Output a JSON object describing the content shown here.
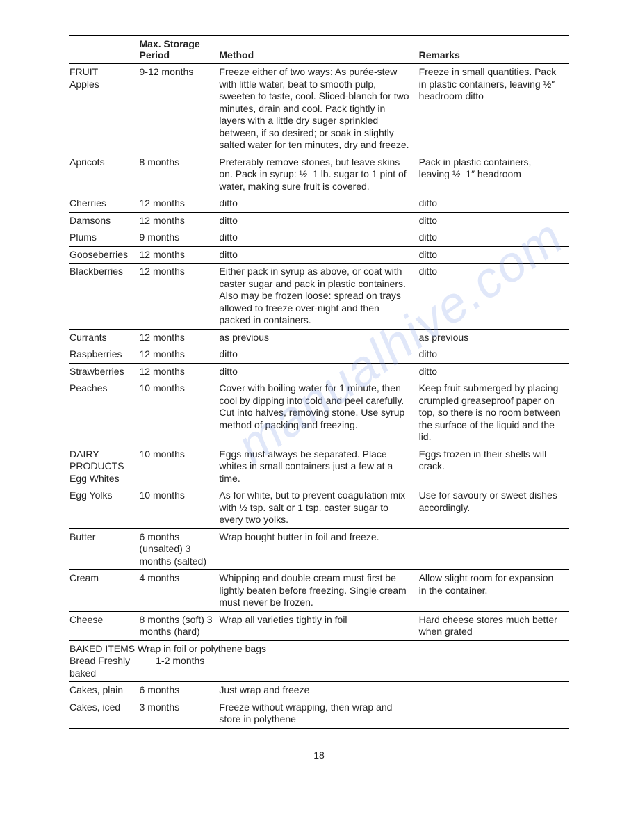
{
  "headers": {
    "item": "",
    "period_top": "Max. Storage",
    "period": "Period",
    "method": "Method",
    "remarks": "Remarks"
  },
  "rows": [
    {
      "cat": "FRUIT",
      "item": "Apples",
      "period": "9-12 months",
      "method": "Freeze either of two ways:\nAs purée-stew with little water, beat to smooth pulp, sweeten to taste, cool. Sliced-blanch for two minutes, drain and cool. Pack tightly in layers with a little dry suger sprinkled between, if so desired; or soak in slightly salted water for ten minutes, dry and freeze.",
      "remarks": "Freeze in small quantities. Pack in plastic containers, leaving ½″ headroom ditto"
    },
    {
      "item": "Apricots",
      "period": "8 months",
      "method": "Preferably remove stones, but leave skins on. Pack in syrup: ½–1 lb. sugar to 1 pint of water, making sure fruit is covered.",
      "remarks": "Pack in plastic containers, leaving ½–1″ headroom"
    },
    {
      "item": "Cherries",
      "period": "12 months",
      "method": "ditto",
      "remarks": "ditto"
    },
    {
      "item": "Damsons",
      "period": "12 months",
      "method": "ditto",
      "remarks": "ditto"
    },
    {
      "item": "Plums",
      "period": "9 months",
      "method": "ditto",
      "remarks": "ditto"
    },
    {
      "item": "Gooseberries",
      "period": "12 months",
      "method": "ditto",
      "remarks": "ditto"
    },
    {
      "item": "Blackberries",
      "period": "12 months",
      "method": "Either pack in syrup as above, or coat with caster sugar and pack in plastic containers. Also may be frozen loose: spread on trays allowed to freeze over-night and then packed in containers.",
      "remarks": "ditto"
    },
    {
      "item": "Currants",
      "period": "12 months",
      "method": "as previous",
      "remarks": "as previous"
    },
    {
      "item": "Raspberries",
      "period": "12 months",
      "method": "ditto",
      "remarks": "ditto"
    },
    {
      "item": "Strawberries",
      "period": "12 months",
      "method": "ditto",
      "remarks": "ditto"
    },
    {
      "item": "Peaches",
      "period": "10 months",
      "method": "Cover with boiling water for 1 minute, then cool by dipping into cold and peel carefully. Cut into halves, removing stone. Use syrup method of packing and freezing.",
      "remarks": "Keep fruit submerged by placing crumpled greaseproof paper on top, so there is no room between the surface of the liquid and the lid."
    },
    {
      "cat": "DAIRY PRODUCTS",
      "item": "Egg Whites",
      "period": "10 months",
      "method": "Eggs must always be separated. Place whites in small containers just a few at a time.",
      "remarks": "Eggs frozen in their shells will crack."
    },
    {
      "item": "Egg Yolks",
      "period": "10 months",
      "method": "As for white, but to prevent coagulation mix with ½ tsp. salt or 1 tsp. caster sugar to every two yolks.",
      "remarks": "Use for savoury or sweet dishes accordingly."
    },
    {
      "item": "Butter",
      "period": "6 months (unsalted) 3 months (salted)",
      "method": "Wrap bought butter in foil and freeze.",
      "remarks": ""
    },
    {
      "item": "Cream",
      "period": "4 months",
      "method": "Whipping and double cream must first be lightly beaten before freezing. Single cream must never be frozen.",
      "remarks": "Allow slight room for expansion in the container."
    },
    {
      "item": "Cheese",
      "period": "8 months (soft) 3 months (hard)",
      "method": "Wrap all varieties tightly in foil",
      "remarks": "Hard cheese stores much better when grated"
    },
    {
      "cat": "BAKED ITEMS",
      "cat_note": "Wrap in foil or polythene bags",
      "item": "Bread Freshly baked",
      "period": "1-2 months",
      "method": "",
      "remarks": ""
    },
    {
      "item": "Cakes, plain",
      "period": "6 months",
      "method": "Just wrap and freeze",
      "remarks": ""
    },
    {
      "item": "Cakes, iced",
      "period": "3 months",
      "method": "Freeze without wrapping, then wrap and store in polythene",
      "remarks": ""
    }
  ],
  "page_number": "18",
  "watermark": "manualhive.com"
}
